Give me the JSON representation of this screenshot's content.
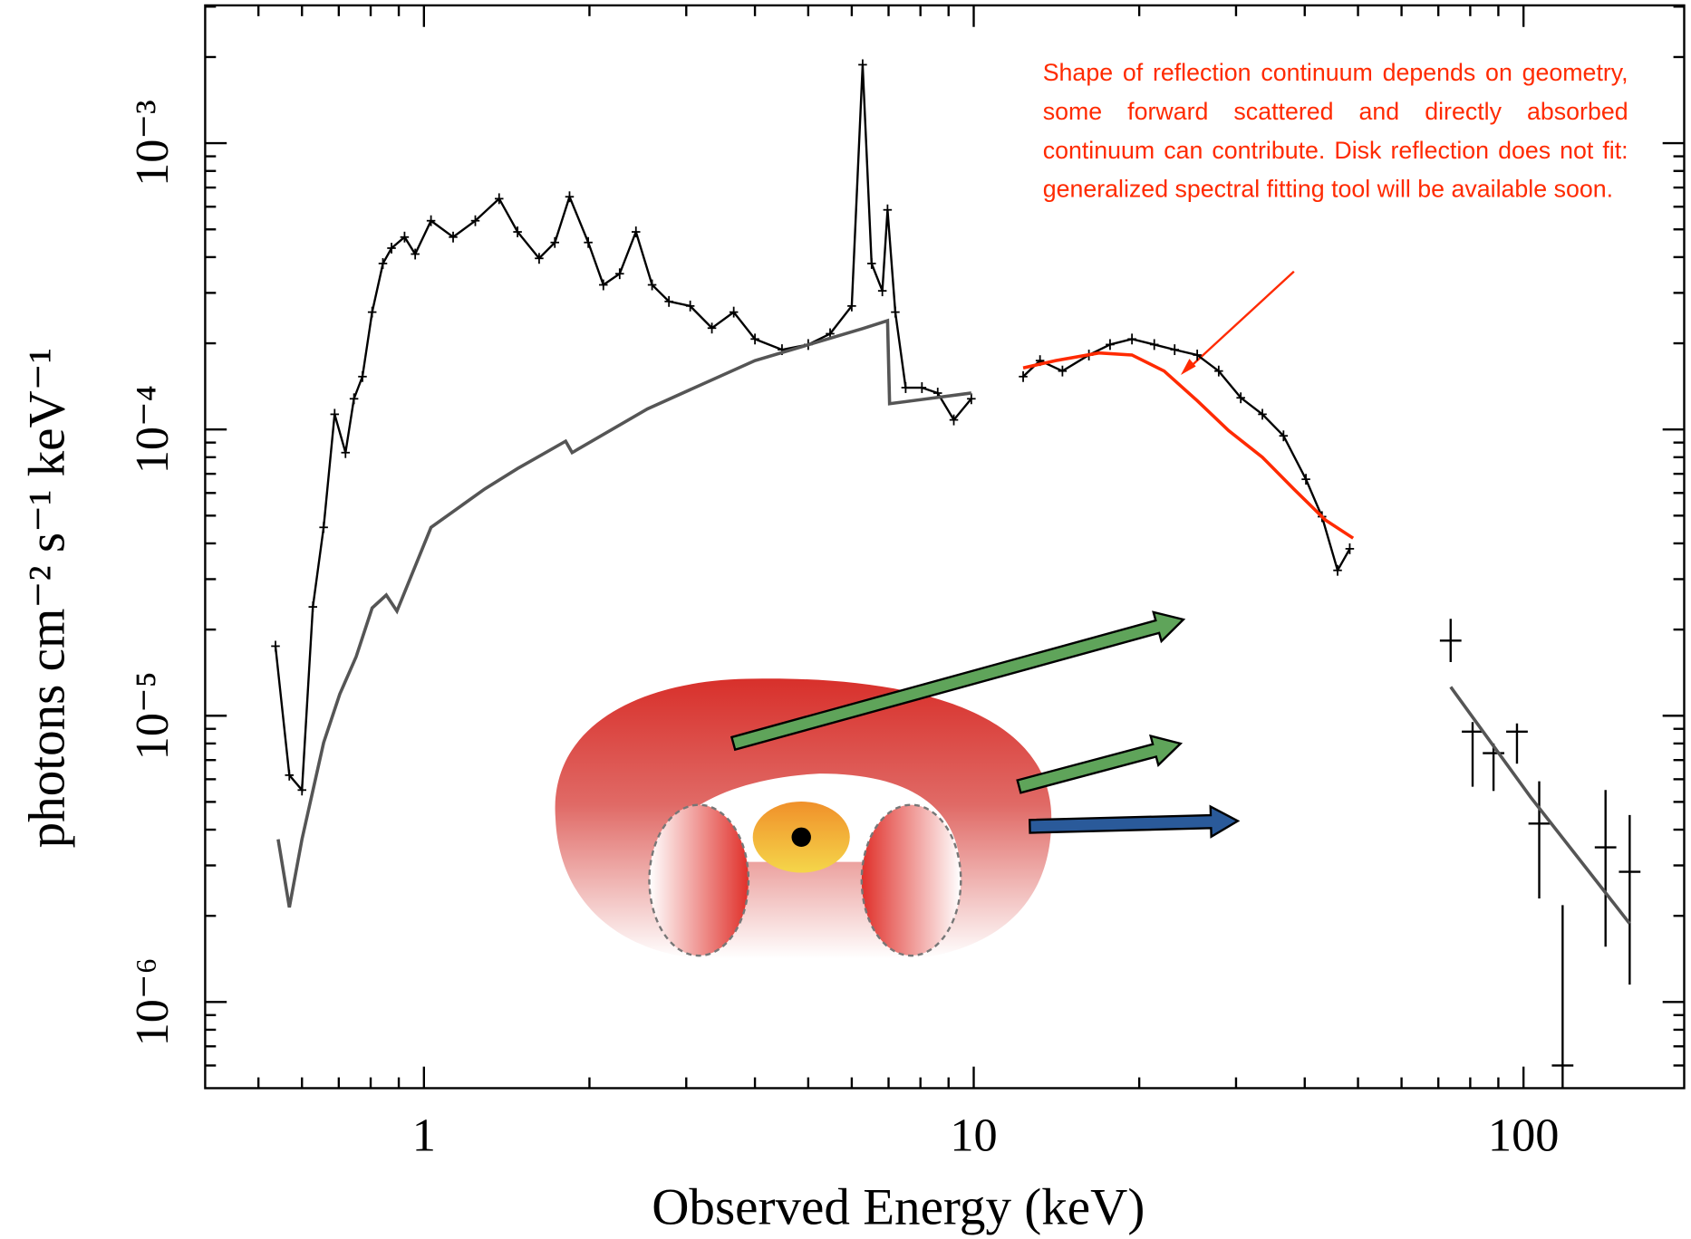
{
  "chart_data": {
    "type": "line",
    "xlabel": "Observed Energy (keV)",
    "ylabel": "photons cm⁻² s⁻¹ keV⁻¹",
    "annotation": "Shape of reflection continuum depends on geometry, some forward scattered and directly absorbed continuum can contribute. Disk reflection does not fit: generalized spectral fitting tool will be available soon.",
    "xlog": true,
    "ylog": true,
    "xlim": [
      0.4,
      196
    ],
    "ylim": [
      5e-07,
      0.00303
    ],
    "xticks": [
      1,
      10,
      100
    ],
    "xminorticks": [
      0.5,
      0.6,
      0.7,
      0.8,
      0.9,
      2,
      3,
      4,
      5,
      6,
      7,
      8,
      9,
      20,
      30,
      40,
      50,
      60,
      70,
      80,
      90
    ],
    "yticks": [
      {
        "value": 1e-06,
        "label": "10⁻⁶"
      },
      {
        "value": 1e-05,
        "label": "10⁻⁵"
      },
      {
        "value": 0.0001,
        "label": "10⁻⁴"
      },
      {
        "value": 0.001,
        "label": "10⁻³"
      }
    ],
    "yminorticks": [
      6e-07,
      7e-07,
      8e-07,
      9e-07,
      2e-06,
      3e-06,
      4e-06,
      5e-06,
      6e-06,
      7e-06,
      8e-06,
      9e-06,
      2e-05,
      3e-05,
      4e-05,
      5e-05,
      6e-05,
      7e-05,
      8e-05,
      9e-05,
      0.0002,
      0.0003,
      0.0004,
      0.0005,
      0.0006,
      0.0007,
      0.0008,
      0.0009,
      0.002,
      0.003
    ],
    "series": [
      {
        "color": "#000000",
        "marker": "+",
        "x": [
          0.537,
          0.569,
          0.6,
          0.628,
          0.657,
          0.688,
          0.72,
          0.746,
          0.773,
          0.805,
          0.842,
          0.873,
          0.922,
          0.964,
          1.03,
          1.13,
          1.24,
          1.37,
          1.48,
          1.62,
          1.73,
          1.84,
          1.99,
          2.12,
          2.27,
          2.43,
          2.6,
          2.79,
          3.05,
          3.34,
          3.66,
          4.0,
          4.48,
          5.0,
          5.48,
          6.0,
          6.28,
          6.52,
          6.82,
          6.97,
          7.2,
          7.52,
          8.05,
          8.6,
          9.2,
          9.9
        ],
        "values": [
          1.75e-05,
          6.2e-06,
          5.5e-06,
          2.4e-05,
          4.55e-05,
          0.000113,
          8.3e-05,
          0.000128,
          0.000153,
          0.000257,
          0.00038,
          0.00043,
          0.00047,
          0.00041,
          0.000536,
          0.00047,
          0.000536,
          0.00064,
          0.00049,
          0.000396,
          0.00045,
          0.00065,
          0.00045,
          0.00032,
          0.00035,
          0.00049,
          0.00032,
          0.00028,
          0.00027,
          0.000226,
          0.000257,
          0.000207,
          0.00019,
          0.000198,
          0.000216,
          0.00027,
          0.00188,
          0.00038,
          0.000305,
          0.000585,
          0.000257,
          0.00014,
          0.00014,
          0.000134,
          0.000108,
          0.000128
        ]
      },
      {
        "color": "#555555",
        "x": [
          0.543,
          0.569,
          0.6,
          0.657,
          0.703,
          0.753,
          0.805,
          0.854,
          0.893,
          1.03,
          1.29,
          1.48,
          1.81,
          1.86,
          2.55,
          4.0,
          6.28,
          6.97,
          7.03,
          9.9
        ],
        "values": [
          3.7e-06,
          2.14e-06,
          3.7e-06,
          8.05e-06,
          1.19e-05,
          1.61e-05,
          2.38e-05,
          2.64e-05,
          2.32e-05,
          4.55e-05,
          6.2e-05,
          7.3e-05,
          9.1e-05,
          8.3e-05,
          0.000118,
          0.000174,
          0.000225,
          0.00024,
          0.000123,
          0.000134
        ]
      },
      {
        "color": "#000000",
        "marker": "+",
        "x": [
          12.3,
          13.2,
          14.5,
          16.2,
          17.7,
          19.4,
          21.3,
          23.2,
          25.5,
          27.9,
          30.6,
          33.5,
          36.6,
          40.2,
          43.0,
          45.9,
          48.3
        ],
        "values": [
          0.000153,
          0.000174,
          0.00016,
          0.000182,
          0.000198,
          0.000207,
          0.000198,
          0.00019,
          0.000182,
          0.00016,
          0.000129,
          0.000113,
          9.5e-05,
          6.7e-05,
          4.96e-05,
          3.22e-05,
          3.83e-05
        ]
      },
      {
        "color": "#ff2a00",
        "x": [
          12.3,
          14.1,
          16.9,
          19.4,
          22.2,
          25.5,
          29.1,
          33.5,
          38.2,
          43.6,
          49.0
        ],
        "values": [
          0.000164,
          0.000174,
          0.000185,
          0.000182,
          0.00016,
          0.000126,
          9.9e-05,
          8e-05,
          6.2e-05,
          4.83e-05,
          4.17e-05
        ]
      },
      {
        "color": "#000000",
        "marker": "errorbar",
        "x": [
          73.7,
          80.8,
          88.2,
          97.3,
          106.8,
          117.8,
          141,
          156
        ],
        "values": [
          1.83e-05,
          8.8e-06,
          7.4e-06,
          8.8e-06,
          4.2e-06,
          6e-07,
          3.47e-06,
          2.85e-06
        ],
        "lower": [
          1.54e-05,
          5.65e-06,
          5.46e-06,
          6.8e-06,
          2.3e-06,
          5e-07,
          1.56e-06,
          1.15e-06
        ],
        "upper": [
          2.18e-05,
          9.5e-06,
          8e-06,
          9.4e-06,
          5.9e-06,
          2.18e-06,
          5.5e-06,
          4.5e-06
        ]
      },
      {
        "color": "#555555",
        "x": [
          73.7,
          103,
          156
        ],
        "values": [
          1.26e-05,
          5.2e-06,
          1.88e-06
        ]
      }
    ]
  }
}
